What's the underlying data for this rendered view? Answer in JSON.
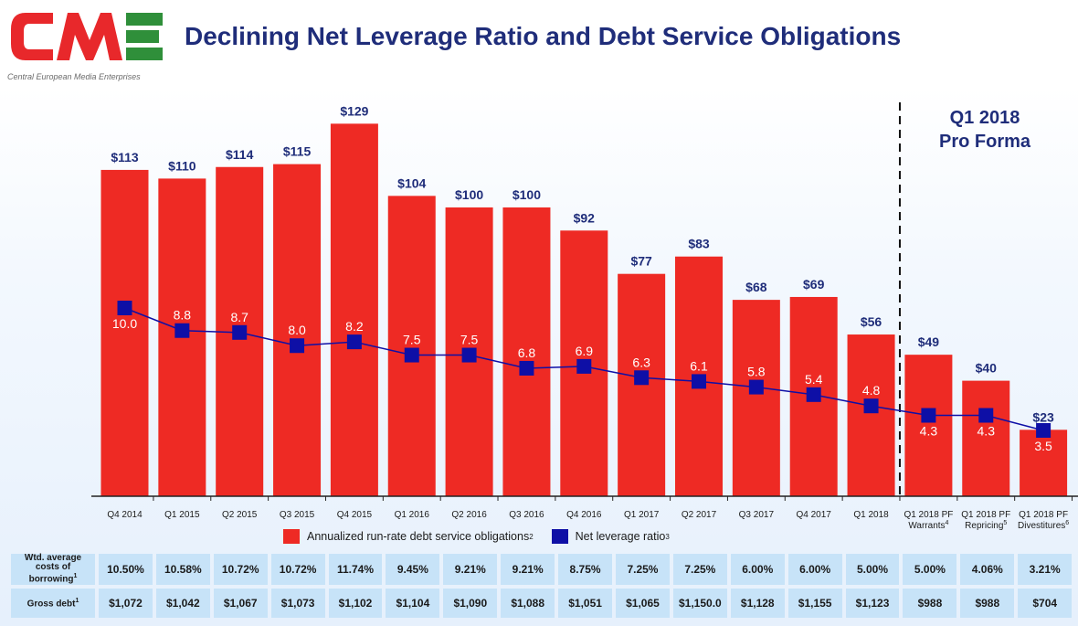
{
  "header": {
    "logo_text": "CME",
    "logo_tagline": "Central European Media Enterprises",
    "title": "Declining Net Leverage Ratio and Debt Service Obligations"
  },
  "colors": {
    "bar": "#ee2a24",
    "line": "#0e0fa6",
    "title": "#1f2d7a",
    "table_cell": "#c7e3f8",
    "logo_red": "#e8282b",
    "logo_green": "#2f8f3a"
  },
  "chart_data": {
    "type": "bar",
    "categories": [
      "Q4 2014",
      "Q1 2015",
      "Q2 2015",
      "Q3 2015",
      "Q4 2015",
      "Q1 2016",
      "Q2 2016",
      "Q3 2016",
      "Q4 2016",
      "Q1 2017",
      "Q2 2017",
      "Q3 2017",
      "Q4 2017",
      "Q1 2018",
      "Q1 2018 PF Warrants",
      "Q1 2018 PF Repricing",
      "Q1 2018 PF Divestitures"
    ],
    "category_lines": [
      [
        "Q4 2014"
      ],
      [
        "Q1 2015"
      ],
      [
        "Q2 2015"
      ],
      [
        "Q3 2015"
      ],
      [
        "Q4 2015"
      ],
      [
        "Q1 2016"
      ],
      [
        "Q2 2016"
      ],
      [
        "Q3 2016"
      ],
      [
        "Q4 2016"
      ],
      [
        "Q1 2017"
      ],
      [
        "Q2 2017"
      ],
      [
        "Q3 2017"
      ],
      [
        "Q4 2017"
      ],
      [
        "Q1 2018"
      ],
      [
        "Q1 2018 PF",
        "Warrants",
        "4"
      ],
      [
        "Q1 2018 PF",
        "Repricing",
        "5"
      ],
      [
        "Q1 2018 PF",
        "Divestitures",
        "6"
      ]
    ],
    "series": [
      {
        "name": "Annualized run-rate debt service obligations",
        "kind": "bar",
        "values": [
          113,
          110,
          114,
          115,
          129,
          104,
          100,
          100,
          92,
          77,
          83,
          68,
          69,
          56,
          49,
          40,
          23
        ],
        "labels": [
          "$113",
          "$110",
          "$114",
          "$115",
          "$129",
          "$104",
          "$100",
          "$100",
          "$92",
          "$77",
          "$83",
          "$68",
          "$69",
          "$56",
          "$49",
          "$40",
          "$23"
        ],
        "footnote": "2"
      },
      {
        "name": "Net leverage ratio",
        "kind": "line",
        "values": [
          10.0,
          8.8,
          8.7,
          8.0,
          8.2,
          7.5,
          7.5,
          6.8,
          6.9,
          6.3,
          6.1,
          5.8,
          5.4,
          4.8,
          4.3,
          4.3,
          3.5
        ],
        "labels": [
          "10.0",
          "8.8",
          "8.7",
          "8.0",
          "8.2",
          "7.5",
          "7.5",
          "6.8",
          "6.9",
          "6.3",
          "6.1",
          "5.8",
          "5.4",
          "4.8",
          "4.3",
          "4.3",
          "3.5"
        ],
        "footnote": "3"
      }
    ],
    "pro_forma": {
      "label_line1": "Q1 2018",
      "label_line2": "Pro Forma",
      "starts_at_index": 14
    },
    "legend_position": "bottom"
  },
  "table": {
    "rows": [
      {
        "label_lines": [
          "Wtd. average",
          "costs of",
          "borrowing"
        ],
        "footnote": "1",
        "values": [
          "10.50%",
          "10.58%",
          "10.72%",
          "10.72%",
          "11.74%",
          "9.45%",
          "9.21%",
          "9.21%",
          "8.75%",
          "7.25%",
          "7.25%",
          "6.00%",
          "6.00%",
          "5.00%",
          "5.00%",
          "4.06%",
          "3.21%"
        ]
      },
      {
        "label_lines": [
          "Gross debt"
        ],
        "footnote": "1",
        "values": [
          "$1,072",
          "$1,042",
          "$1,067",
          "$1,073",
          "$1,102",
          "$1,104",
          "$1,090",
          "$1,088",
          "$1,051",
          "$1,065",
          "$1,150.0",
          "$1,128",
          "$1,155",
          "$1,123",
          "$988",
          "$988",
          "$704"
        ]
      }
    ]
  }
}
